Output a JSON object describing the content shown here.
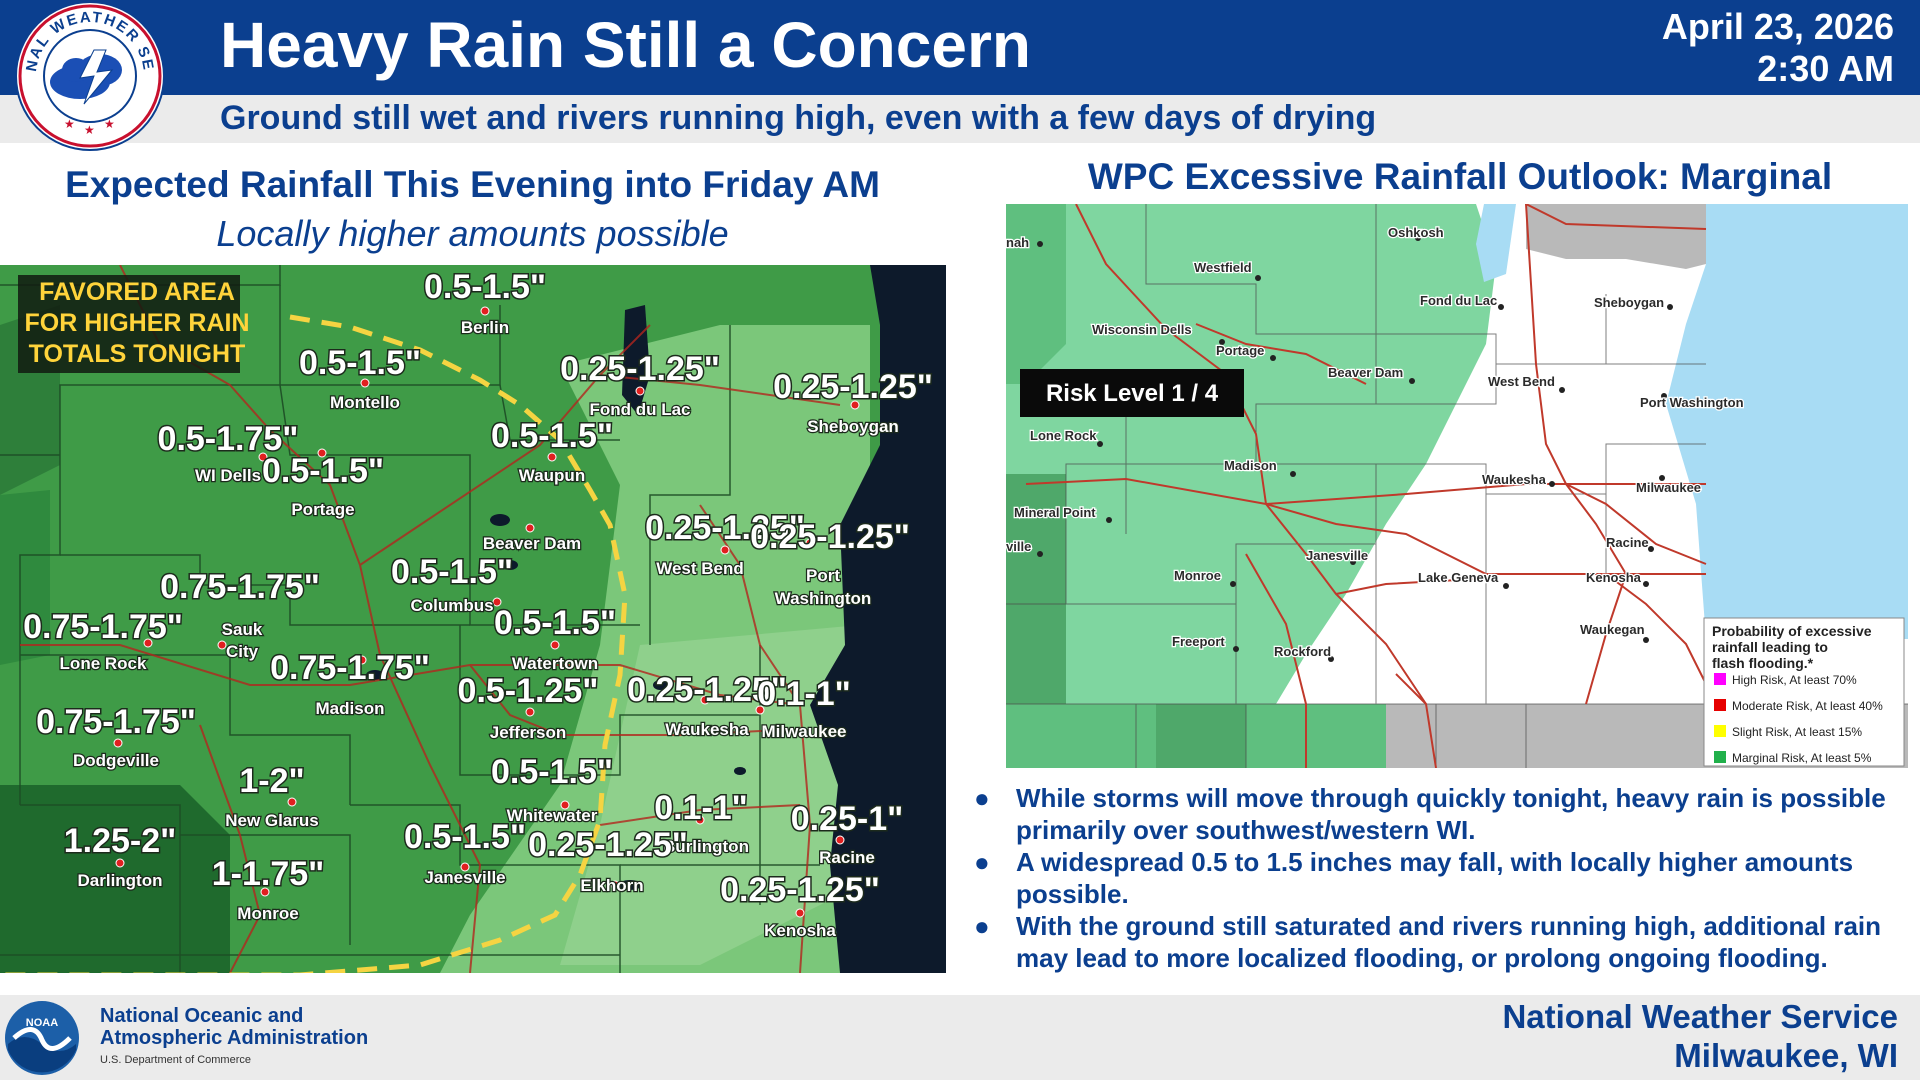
{
  "header": {
    "title": "Heavy Rain Still a Concern",
    "subtitle": "Ground still wet and rivers running high, even with a few days of drying",
    "date": "April 23, 2026",
    "time": "2:30 AM",
    "logo_text": "NATIONAL WEATHER SERVICE"
  },
  "left_panel": {
    "heading": "Expected Rainfall This Evening into Friday AM",
    "subheading": "Locally higher amounts possible",
    "favored_area": [
      "FAVORED AREA",
      "FOR HIGHER RAIN",
      "TOTALS TONIGHT"
    ],
    "amounts": [
      "0.5-1.5\"",
      "0.5-1.5\"",
      "0.25-1.25\"",
      "0.25-1.25\"",
      "0.5-1.75\"",
      "0.5-1.5\"",
      "0.5-1.5\"",
      "0.25-1.25\"",
      "0.25-1.25\"",
      "0.75-1.75\"",
      "0.5-1.5\"",
      "0.75-1.75\"",
      "0.5-1.5\"",
      "0.75-1.75\"",
      "0.5-1.25\"",
      "0.25-1.25\"",
      "0.1-1\"",
      "0.75-1.75\"",
      "1-2\"",
      "0.5-1.5\"",
      "1.25-2\"",
      "0.5-1.5\"",
      "0.25-1.25\"",
      "0.1-1\"",
      "0.25-1\"",
      "1-1.75\"",
      "0.25-1.25\""
    ],
    "cities": [
      "Berlin",
      "Montello",
      "Fond du Lac",
      "Sheboygan",
      "WI Dells",
      "Portage",
      "Waupun",
      "Beaver Dam",
      "West Bend",
      "Port",
      "Washington",
      "Columbus",
      "Sauk",
      "City",
      "Lone Rock",
      "Watertown",
      "Madison",
      "Waukesha",
      "Milwaukee",
      "Jefferson",
      "Dodgeville",
      "New Glarus",
      "Whitewater",
      "Burlington",
      "Racine",
      "Darlington",
      "Janesville",
      "Elkhorn",
      "Monroe",
      "Kenosha"
    ],
    "colors": {
      "light_green": "#7bc77a",
      "mid_green": "#3f9b47",
      "dark_green": "#1f6a2d",
      "lake": "#0d1a2b",
      "boundary": "#f5d442"
    }
  },
  "right_panel": {
    "heading": "WPC Excessive Rainfall Outlook: Marginal",
    "risk_label": "Risk Level 1 / 4",
    "cities": [
      "Oshkosh",
      "Westfield",
      "Fond du Lac",
      "Sheboygan",
      "Wisconsin Dells",
      "Portage",
      "Beaver Dam",
      "West Bend",
      "Port Washington",
      "Lone Rock",
      "Madison",
      "Waukesha",
      "Milwaukee",
      "Mineral Point",
      "Racine",
      "Janesville",
      "Monroe",
      "Lake Geneva",
      "Kenosha",
      "Freeport",
      "Rockford",
      "Waukegan"
    ],
    "cities_cut": [
      "nah",
      "ville"
    ],
    "legend": {
      "title": [
        "Probability of excessive",
        "rainfall leading to",
        "flash flooding.*"
      ],
      "items": [
        {
          "label": "High Risk, At least 70%",
          "color": "#ff00ff"
        },
        {
          "label": "Moderate Risk, At least 40%",
          "color": "#e60000"
        },
        {
          "label": "Slight Risk, At least 15%",
          "color": "#ffff00"
        },
        {
          "label": "Marginal Risk, At least 5%",
          "color": "#21b04b"
        }
      ]
    },
    "colors": {
      "marginal": "#7fd6a0",
      "none": "#ffffff",
      "lake": "#a8dcf4",
      "out": "#b9b9b9",
      "road": "#c0392b"
    }
  },
  "bullets": [
    "While storms will move through quickly tonight, heavy rain is possible primarily over southwest/western WI.",
    "A widespread 0.5 to 1.5 inches may fall, with locally higher amounts possible.",
    "With the ground still saturated and rivers running high, additional rain may lead to more localized flooding, or prolong ongoing flooding."
  ],
  "footer": {
    "noaa_name_line1": "National Oceanic and",
    "noaa_name_line2": "Atmospheric Administration",
    "noaa_dept": "U.S. Department of Commerce",
    "noaa_logo_text": "NOAA",
    "office_name": "National Weather Service",
    "office_city": "Milwaukee, WI"
  }
}
